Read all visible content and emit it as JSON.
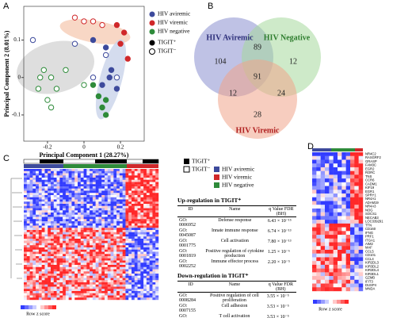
{
  "panel_labels": [
    "A",
    "B",
    "C",
    "D"
  ],
  "chart_data": {
    "type": "scatter",
    "x_label": "Principal Component 1 (28.27%)",
    "y_label": "Principal Component 2 (8.01%)",
    "xlim": [
      -0.33,
      0.33
    ],
    "ylim": [
      -0.17,
      0.19
    ],
    "xticks": [
      -0.2,
      0.0,
      0.2
    ],
    "yticks": [
      -0.1,
      0.0,
      0.1
    ],
    "series": [
      {
        "name": "HIV aviremic",
        "color": "#3d4a9c",
        "x": [
          0.12,
          0.15,
          0.14,
          0.1,
          0.05,
          0.18,
          -0.28,
          0.05,
          0.12,
          0.18,
          -0.05
        ],
        "y": [
          0.08,
          0.02,
          0.0,
          -0.02,
          0.1,
          -0.03,
          0.1,
          0.0,
          0.06,
          0.0,
          0.09
        ],
        "filled": [
          true,
          true,
          true,
          true,
          true,
          true,
          false,
          false,
          false,
          false,
          false
        ]
      },
      {
        "name": "HIV viremic",
        "color": "#d0282a",
        "x": [
          0.2,
          0.22,
          0.18,
          0.24,
          0.0,
          0.05,
          -0.05,
          0.1
        ],
        "y": [
          0.09,
          0.12,
          0.14,
          0.05,
          0.15,
          0.15,
          0.16,
          0.14
        ],
        "filled": [
          true,
          true,
          true,
          true,
          false,
          false,
          false,
          false
        ]
      },
      {
        "name": "HIV negative",
        "color": "#2e8b3a",
        "x": [
          0.08,
          0.1,
          0.12,
          0.05,
          0.12,
          -0.22,
          -0.25,
          -0.2,
          -0.18,
          -0.24,
          -0.15,
          -0.18,
          0.0,
          -0.1
        ],
        "y": [
          -0.05,
          -0.08,
          -0.1,
          -0.02,
          -0.06,
          0.02,
          -0.03,
          -0.06,
          0.0,
          0.0,
          -0.03,
          -0.08,
          -0.02,
          0.02
        ],
        "filled": [
          true,
          true,
          true,
          true,
          true,
          false,
          false,
          false,
          false,
          false,
          false,
          false,
          false,
          false
        ]
      }
    ],
    "marker_legend": [
      "TIGIT⁺",
      "TIGIT⁻"
    ]
  },
  "venn": {
    "sets": [
      "HIV Aviremic",
      "HIV Negative",
      "HIV Viremic"
    ],
    "only_aviremic": 104,
    "aviremic_negative": 89,
    "only_negative": 12,
    "all": 91,
    "aviremic_viremic": 12,
    "negative_viremic": 24,
    "only_viremic": 28
  },
  "panel_c": {
    "legend_tigit": [
      "TIGIT⁺",
      "TIGIT⁻"
    ],
    "legend_groups": [
      "HIV aviremic",
      "HIV viremic",
      "HIV negative"
    ],
    "color_key": "Row z score",
    "up": {
      "title": "Up-regulation in TIGIT⁺",
      "headers": [
        "ID",
        "Name",
        "q Value FDR (BH)"
      ],
      "rows": [
        [
          "GO: 0006952",
          "Defense response",
          "6.43 × 10⁻¹⁵"
        ],
        [
          "GO: 0045087",
          "Innate immune response",
          "6.74 × 10⁻¹³"
        ],
        [
          "GO: 0001775",
          "Cell activation",
          "7.80 × 10⁻¹³"
        ],
        [
          "GO: 0001819",
          "Positive regulation of cytokine production",
          "1.25 × 10⁻⁶"
        ],
        [
          "GO: 0002252",
          "Immune effector process",
          "2.20 × 10⁻⁵"
        ]
      ]
    },
    "down": {
      "title": "Down-regulation in TIGIT⁺",
      "headers": [
        "ID",
        "Name",
        "q Value FDR (BH)"
      ],
      "rows": [
        [
          "GO: 0008284",
          "Positive regulation of cell proliferation",
          "3.55 × 10⁻⁵"
        ],
        [
          "GO: 0007155",
          "Cell adhesion",
          "3.53 × 10⁻⁵"
        ],
        [
          "GO: 0042110",
          "T cell activation",
          "3.53 × 10⁻⁵"
        ]
      ]
    }
  },
  "panel_d": {
    "color_key": "Row z score",
    "genes": [
      "NR4C2",
      "RASGRF2",
      "GRASP",
      "FAM3C",
      "EGR2",
      "RORC",
      "TNS",
      "CCR6",
      "CADM1",
      "KIF19",
      "EGR1",
      "SPRY1",
      "NR4A1",
      "ADAM19",
      "NR4A3",
      "NOG",
      "SOCS1",
      "NECAB3",
      "LOC339291",
      "TTN",
      "CD160",
      "IFNG",
      "PRF1",
      "ITGA1",
      "AIM2",
      "MAF",
      "CCL5",
      "CD101",
      "CCL4",
      "KIR2DL3",
      "KIR3DL2",
      "KIR2DL4",
      "KIR3DL1",
      "GZMB",
      "IFIT3",
      "DUSP4",
      "MNDA"
    ]
  }
}
